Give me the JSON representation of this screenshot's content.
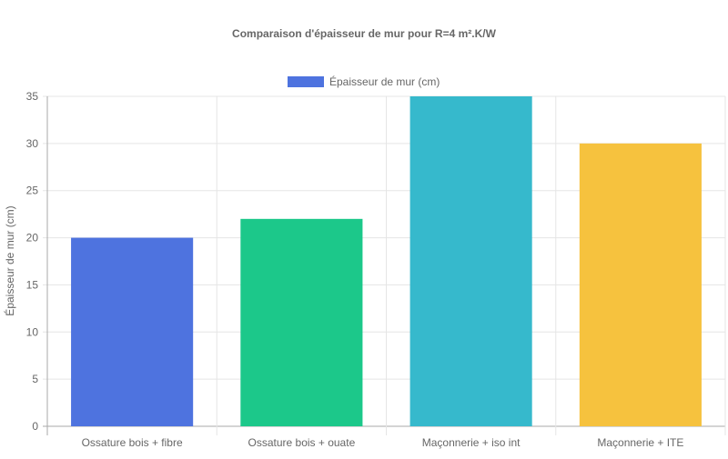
{
  "chart_data": {
    "type": "bar",
    "title": "Comparaison d'épaisseur de mur pour R=4 m².K/W",
    "xlabel": "",
    "ylabel": "Épaisseur de mur (cm)",
    "ylim": [
      0,
      35
    ],
    "yticks": [
      "0",
      "5",
      "10",
      "15",
      "20",
      "25",
      "30",
      "35"
    ],
    "grid": true,
    "legend_position": "top",
    "categories": [
      "Ossature bois + fibre",
      "Ossature bois + ouate",
      "Maçonnerie + iso int",
      "Maçonnerie + ITE"
    ],
    "series": [
      {
        "name": "Épaisseur de mur (cm)",
        "values": [
          20,
          22,
          35,
          30
        ],
        "colors": [
          "#4e73df",
          "#1cc88a",
          "#36b9cc",
          "#f6c23e"
        ]
      }
    ]
  }
}
